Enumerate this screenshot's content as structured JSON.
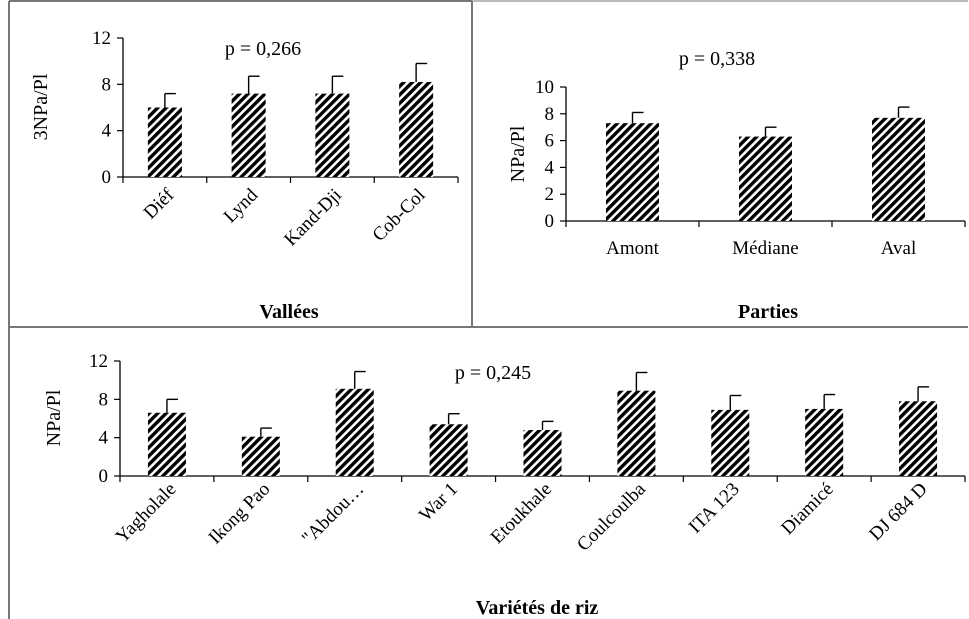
{
  "chart_data": [
    {
      "type": "bar",
      "title": "",
      "annotation": "p = 0,266",
      "xlabel": "Vallées",
      "ylabel": "3NPa/Pl",
      "ylim": [
        0,
        12
      ],
      "yticks": [
        "0",
        "4",
        "8",
        "12"
      ],
      "categories": [
        "Diéf",
        "Lynd",
        "Kand-Dji",
        "Cob-Col"
      ],
      "values": [
        6.0,
        7.2,
        7.2,
        8.2
      ],
      "errors": [
        1.2,
        1.5,
        1.5,
        1.6
      ],
      "grid": false,
      "bar_pattern": "diagonal-hatch"
    },
    {
      "type": "bar",
      "title": "",
      "annotation": "p = 0,338",
      "xlabel": "Parties",
      "ylabel": "NPa/Pl",
      "ylim": [
        0,
        10
      ],
      "yticks": [
        "0",
        "2",
        "4",
        "6",
        "8",
        "10"
      ],
      "categories": [
        "Amont",
        "Médiane",
        "Aval"
      ],
      "values": [
        7.3,
        6.3,
        7.7
      ],
      "errors": [
        0.8,
        0.7,
        0.8
      ],
      "grid": false,
      "bar_pattern": "diagonal-hatch"
    },
    {
      "type": "bar",
      "title": "",
      "annotation": "p = 0,245",
      "xlabel": "Variétés de riz",
      "ylabel": "NPa/Pl",
      "ylim": [
        0,
        12
      ],
      "yticks": [
        "0",
        "4",
        "8",
        "12"
      ],
      "categories": [
        "Yagholale",
        "Ikong Pao",
        "\"Abdou…",
        "War 1",
        "Etoukhale",
        "Coulcoulba",
        "ITA 123",
        "Diamicé",
        "DJ 684 D"
      ],
      "values": [
        6.6,
        4.1,
        9.1,
        5.4,
        4.8,
        8.9,
        6.9,
        7.0,
        7.8
      ],
      "errors": [
        1.4,
        0.9,
        1.8,
        1.1,
        0.9,
        1.9,
        1.5,
        1.5,
        1.5
      ],
      "grid": false,
      "bar_pattern": "diagonal-hatch"
    }
  ]
}
